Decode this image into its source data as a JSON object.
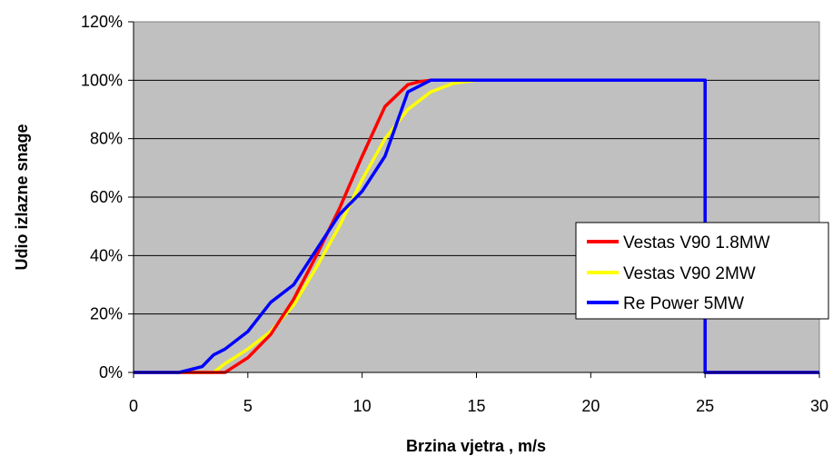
{
  "chart_data": {
    "type": "line",
    "title": "",
    "xlabel": "Brzina vjetra , m/s",
    "ylabel": "Udio izlazne snage",
    "xlim": [
      0,
      30
    ],
    "ylim": [
      0,
      120
    ],
    "x_ticks": [
      "0",
      "5",
      "10",
      "15",
      "20",
      "25",
      "30"
    ],
    "y_ticks": [
      "0%",
      "20%",
      "40%",
      "60%",
      "80%",
      "100%",
      "120%"
    ],
    "grid": "horizontal",
    "plot_background": "#c0c0c0",
    "legend_position": "right",
    "series": [
      {
        "name": "Vestas V90 1.8MW",
        "color": "#ff0000",
        "points": [
          [
            0,
            0
          ],
          [
            3.5,
            0
          ],
          [
            4,
            0
          ],
          [
            5,
            5
          ],
          [
            6,
            13
          ],
          [
            7,
            25
          ],
          [
            8,
            40
          ],
          [
            9,
            56
          ],
          [
            10,
            74
          ],
          [
            11,
            91
          ],
          [
            12,
            98.5
          ],
          [
            12.5,
            99.5
          ],
          [
            13,
            100
          ],
          [
            25,
            100
          ],
          [
            25,
            0
          ],
          [
            30,
            0
          ]
        ]
      },
      {
        "name": "Vestas V90 2MW",
        "color": "#ffff00",
        "points": [
          [
            0,
            0
          ],
          [
            3.5,
            0
          ],
          [
            4,
            3
          ],
          [
            5,
            8
          ],
          [
            6,
            14
          ],
          [
            7,
            23
          ],
          [
            8,
            36
          ],
          [
            9,
            50
          ],
          [
            10,
            66
          ],
          [
            11,
            80
          ],
          [
            12,
            90
          ],
          [
            13,
            96
          ],
          [
            14,
            99
          ],
          [
            15,
            100
          ],
          [
            25,
            100
          ],
          [
            25,
            0
          ],
          [
            30,
            0
          ]
        ]
      },
      {
        "name": "Re Power 5MW",
        "color": "#0000ff",
        "points": [
          [
            0,
            0
          ],
          [
            2,
            0
          ],
          [
            3,
            2
          ],
          [
            3.5,
            6
          ],
          [
            4,
            8
          ],
          [
            5,
            14
          ],
          [
            6,
            24
          ],
          [
            7,
            30
          ],
          [
            8,
            42
          ],
          [
            9,
            54
          ],
          [
            10,
            62
          ],
          [
            11,
            74
          ],
          [
            12,
            96
          ],
          [
            13,
            100
          ],
          [
            25,
            100
          ],
          [
            25,
            0
          ],
          [
            30,
            0
          ]
        ]
      }
    ]
  }
}
